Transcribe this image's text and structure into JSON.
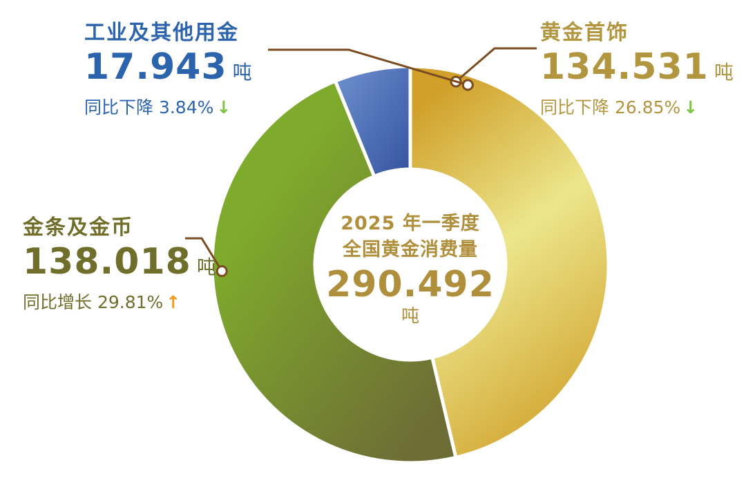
{
  "chart_data": {
    "type": "pie",
    "title": "2025 年一季度 全国黄金消费量",
    "title_lines": [
      "2025 年一季度",
      "全国黄金消费量"
    ],
    "total": "290.492",
    "unit": "吨",
    "donut": true,
    "series": [
      {
        "name": "黄金首饰",
        "value": 134.531,
        "value_text": "134.531",
        "unit": "吨",
        "change_text": "同比下降 26.85%",
        "direction": "down",
        "arrow": "↓",
        "arrow_color": "#7cc142",
        "label_color": "#b2963f",
        "change_color": "#b2963f",
        "color_light": "#ece68c",
        "color_dark": "#d0a02a"
      },
      {
        "name": "金条及金币",
        "value": 138.018,
        "value_text": "138.018",
        "unit": "吨",
        "change_text": "同比增长 29.81%",
        "direction": "up",
        "arrow": "↑",
        "arrow_color": "#f39b1f",
        "label_color": "#6f6e2a",
        "change_color": "#6f6e2a",
        "color_light": "#7fab2c",
        "color_dark": "#6d6c35"
      },
      {
        "name": "工业及其他用金",
        "value": 17.943,
        "value_text": "17.943",
        "unit": "吨",
        "change_text": "同比下降 3.84%",
        "direction": "down",
        "arrow": "↓",
        "arrow_color": "#7cc142",
        "label_color": "#2c63ad",
        "change_color": "#2c63ad",
        "color_light": "#6f91cf",
        "color_dark": "#34539f"
      }
    ],
    "connector_color": "#7a4b1f"
  }
}
